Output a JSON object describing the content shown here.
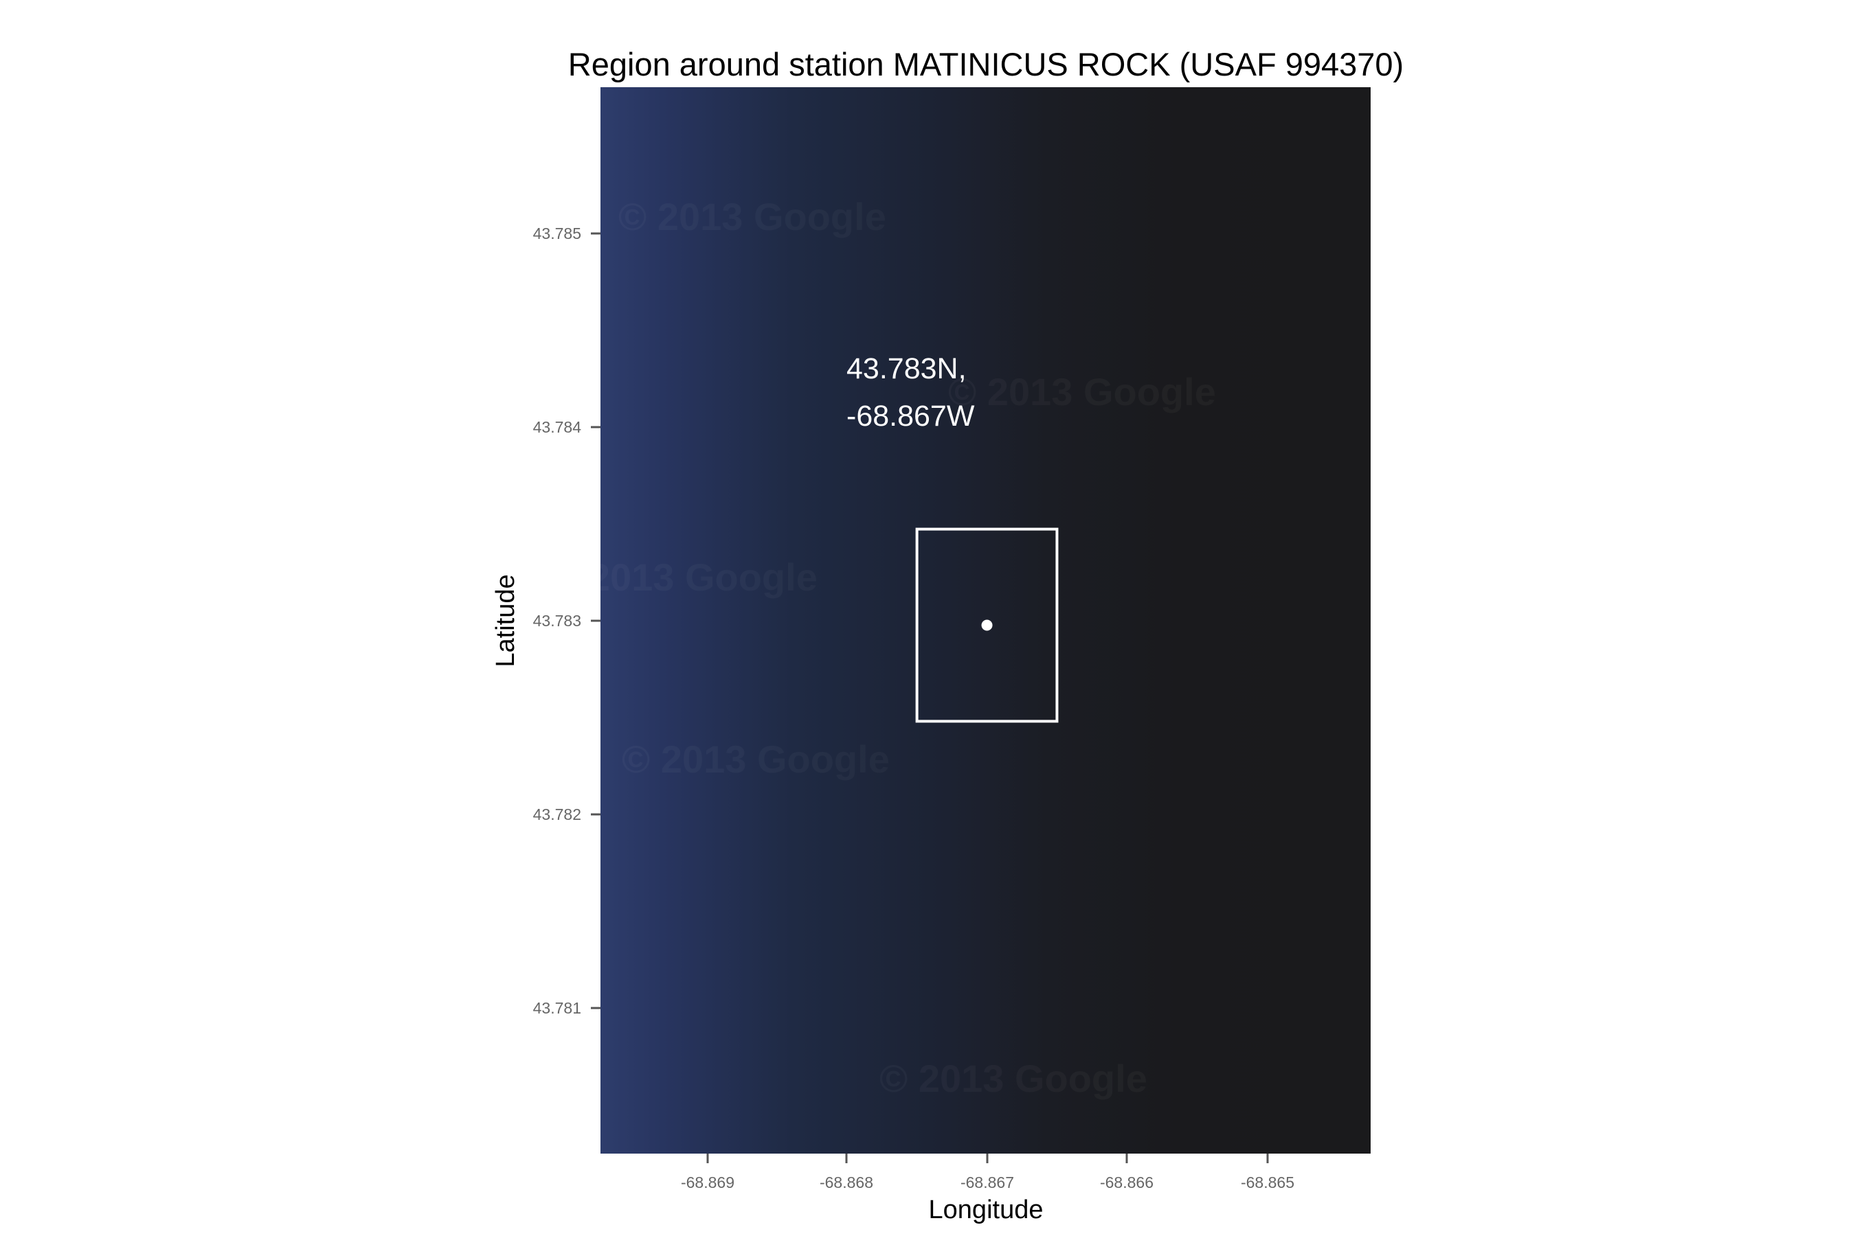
{
  "map": {
    "title": "Region around station MATINICUS ROCK (USAF 994370)",
    "station_name": "MATINICUS ROCK",
    "usaf_id": "994370",
    "x_axis_label": "Longitude",
    "y_axis_label": "Latitude",
    "x_ticks": [
      "-68.869",
      "-68.868",
      "-68.867",
      "-68.866",
      "-68.865"
    ],
    "y_ticks": [
      "43.785",
      "43.784",
      "43.783",
      "43.782",
      "43.781"
    ],
    "coordinate_label_line1": "43.783N,",
    "coordinate_label_line2": "-68.867W",
    "station_point": {
      "lat": 43.783,
      "lon": -68.867
    },
    "station_box": {
      "lon_min": -68.8675,
      "lon_max": -68.8665,
      "lat_min": 43.7825,
      "lat_max": 43.7835
    },
    "extent": {
      "lon_min": -68.86976,
      "lon_max": -68.86426,
      "lat_min": 43.78025,
      "lat_max": 43.7858
    },
    "basemap_watermark": "© 2013 Google",
    "colors": {
      "basemap_left": "#2b3a66",
      "basemap_mid": "#1f2538",
      "basemap_right": "#1a1a1c",
      "overlay": "#ffffff",
      "tick_label": "#666666"
    }
  }
}
